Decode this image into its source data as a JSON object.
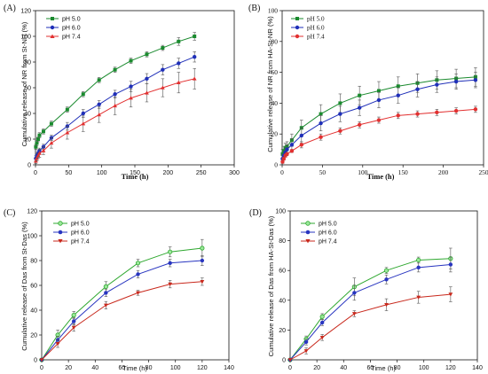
{
  "colors": {
    "ph50": "#1a8a2e",
    "ph60": "#1f2fb8",
    "ph74": "#e23030",
    "ph50_c": "#2fa830",
    "ph60_c": "#2835c0",
    "ph74_c": "#c8281c"
  },
  "chart_data": [
    {
      "panel": "(A)",
      "type": "line",
      "xlabel": "Time (h)",
      "ylabel": "Cumulative release of NR from St-NR (%)",
      "xlim": [
        0,
        300
      ],
      "ylim": [
        0,
        120
      ],
      "xticks": [
        "0",
        "50",
        "100",
        "150",
        "200",
        "250",
        "300"
      ],
      "yticks": [
        "0",
        "20",
        "40",
        "60",
        "80",
        "100",
        "120"
      ],
      "x": [
        0.5,
        2,
        4,
        6,
        12,
        24,
        48,
        72,
        96,
        120,
        144,
        168,
        192,
        216,
        240
      ],
      "series": [
        {
          "name": "pH 5.0",
          "marker": "square",
          "values": [
            14,
            17,
            20,
            23,
            26,
            32,
            43,
            55,
            66,
            74,
            81,
            86,
            91,
            96,
            100
          ],
          "errors": [
            2,
            2,
            2,
            2,
            2,
            2,
            2,
            2,
            2,
            2,
            2,
            2,
            2,
            3,
            3
          ]
        },
        {
          "name": "pH 6.0",
          "marker": "circle",
          "values": [
            5,
            7,
            9,
            11,
            14,
            21,
            30,
            40,
            47,
            55,
            61,
            67,
            74,
            79,
            84
          ],
          "errors": [
            2,
            2,
            2,
            2,
            2,
            2,
            3,
            3,
            3,
            3,
            4,
            4,
            4,
            4,
            4
          ]
        },
        {
          "name": "pH 7.4",
          "marker": "triangle",
          "values": [
            3,
            5,
            7,
            9,
            11,
            17,
            25,
            32,
            39,
            46,
            52,
            56,
            60,
            64,
            67
          ],
          "errors": [
            2,
            2,
            2,
            3,
            3,
            4,
            5,
            6,
            6,
            7,
            7,
            7,
            7,
            8,
            8
          ]
        }
      ]
    },
    {
      "panel": "(B)",
      "type": "line",
      "xlabel": "Time (h)",
      "ylabel": "Cumulative release of NR from HA-St-NR (%)",
      "xlim": [
        0,
        250
      ],
      "ylim": [
        0,
        100
      ],
      "xticks": [
        "0",
        "50",
        "100",
        "150",
        "200",
        "250"
      ],
      "yticks": [
        "0",
        "20",
        "40",
        "60",
        "80",
        "100"
      ],
      "x": [
        0.5,
        2,
        4,
        6,
        12,
        24,
        48,
        72,
        96,
        120,
        144,
        168,
        192,
        216,
        240
      ],
      "series": [
        {
          "name": "pH 5.0",
          "marker": "square",
          "values": [
            7,
            9,
            11,
            12,
            16,
            24,
            33,
            40,
            45,
            48,
            51,
            53,
            55,
            56,
            57
          ],
          "errors": [
            3,
            3,
            3,
            3,
            4,
            5,
            6,
            6,
            6,
            6,
            6,
            6,
            6,
            6,
            6
          ]
        },
        {
          "name": "pH 6.0",
          "marker": "circle",
          "values": [
            4,
            6,
            8,
            10,
            13,
            19,
            27,
            33,
            37,
            42,
            45,
            49,
            52,
            54,
            55
          ],
          "errors": [
            3,
            3,
            3,
            3,
            4,
            5,
            5,
            5,
            5,
            5,
            5,
            5,
            5,
            5,
            5
          ]
        },
        {
          "name": "pH 7.4",
          "marker": "circle",
          "values": [
            2,
            4,
            6,
            7,
            9,
            13,
            18,
            22,
            26,
            29,
            32,
            33,
            34,
            35,
            36
          ],
          "errors": [
            1,
            1,
            1,
            1,
            1,
            2,
            2,
            2,
            2,
            2,
            2,
            2,
            2,
            2,
            2
          ]
        }
      ]
    },
    {
      "panel": "(C)",
      "type": "line",
      "xlabel": "Time (h)",
      "ylabel": "Cumulative release of Das from St-Das (%)",
      "xlim": [
        0,
        140
      ],
      "ylim": [
        0,
        120
      ],
      "xticks": [
        "0",
        "20",
        "40",
        "60",
        "80",
        "100",
        "120",
        "140"
      ],
      "yticks": [
        "0",
        "20",
        "40",
        "60",
        "80",
        "100",
        "120"
      ],
      "x": [
        0,
        12,
        24,
        48,
        72,
        96,
        120
      ],
      "series": [
        {
          "name": "pH 5.0",
          "marker": "circle",
          "values": [
            0,
            20,
            36,
            59,
            78,
            87,
            90
          ],
          "errors": [
            0,
            4,
            3,
            4,
            3,
            4,
            7
          ]
        },
        {
          "name": "pH 6.0",
          "marker": "circle",
          "values": [
            0,
            16,
            31,
            54,
            69,
            78,
            80
          ],
          "errors": [
            0,
            3,
            3,
            3,
            3,
            3,
            4
          ]
        },
        {
          "name": "pH 7.4",
          "marker": "triangle",
          "values": [
            0,
            13,
            26,
            44,
            54,
            61,
            63
          ],
          "errors": [
            0,
            3,
            3,
            3,
            2,
            3,
            3
          ]
        }
      ]
    },
    {
      "panel": "(D)",
      "type": "line",
      "xlabel": "Time (h)",
      "ylabel": "Cumulative release of Das from HA-St-Das (%)",
      "xlim": [
        0,
        140
      ],
      "ylim": [
        0,
        100
      ],
      "xticks": [
        "0",
        "20",
        "40",
        "60",
        "80",
        "100",
        "120",
        "140"
      ],
      "yticks": [
        "0",
        "20",
        "40",
        "60",
        "80",
        "100"
      ],
      "x": [
        0,
        12,
        24,
        48,
        72,
        96,
        120
      ],
      "series": [
        {
          "name": "pH 5.0",
          "marker": "circle",
          "values": [
            0,
            14,
            29,
            49,
            60,
            67,
            68
          ],
          "errors": [
            0,
            2,
            2,
            6,
            2,
            2,
            7
          ]
        },
        {
          "name": "pH 6.0",
          "marker": "circle",
          "values": [
            0,
            12,
            25,
            45,
            54,
            62,
            64
          ],
          "errors": [
            0,
            2,
            2,
            5,
            3,
            3,
            5
          ]
        },
        {
          "name": "pH 7.4",
          "marker": "triangle",
          "values": [
            0,
            6,
            15,
            31,
            37,
            42,
            44
          ],
          "errors": [
            0,
            2,
            2,
            2,
            4,
            4,
            5
          ]
        }
      ]
    }
  ]
}
